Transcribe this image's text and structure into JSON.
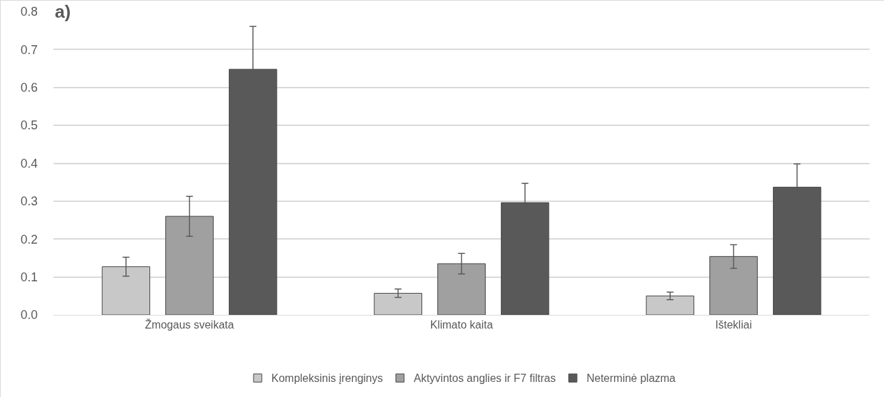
{
  "chart_data": {
    "type": "bar",
    "categories": [
      "Žmogaus sveikata",
      "Klimato kaita",
      "Ištekliai"
    ],
    "series": [
      {
        "name": "Kompleksinis įrenginys",
        "color": "#c8c8c8",
        "values": [
          0.127,
          0.057,
          0.05
        ],
        "errors": [
          0.025,
          0.011,
          0.01
        ]
      },
      {
        "name": "Aktyvintos anglies ir F7 filtras",
        "color": "#a0a0a0",
        "values": [
          0.26,
          0.135,
          0.154
        ],
        "errors": [
          0.053,
          0.027,
          0.031
        ]
      },
      {
        "name": "Neterminė plazma",
        "color": "#595959",
        "values": [
          0.648,
          0.296,
          0.337
        ],
        "errors": [
          0.113,
          0.051,
          0.061
        ]
      }
    ],
    "ylim": [
      0,
      0.8
    ],
    "yticks": [
      {
        "value": 0,
        "label": "0.0"
      },
      0.1,
      0.2,
      0.3,
      0.4,
      0.5,
      0.6,
      0.7,
      0.8
    ],
    "grid": "y",
    "legend": "bottom",
    "annotations": [
      "a)"
    ]
  }
}
